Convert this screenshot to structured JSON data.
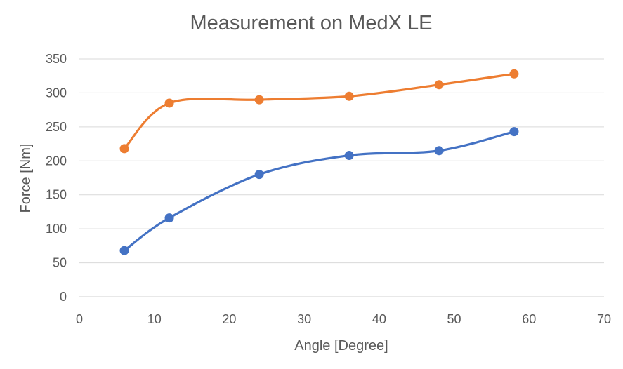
{
  "chart_data": {
    "type": "scatter",
    "title": "Measurement on MedX LE",
    "xlabel": "Angle [Degree]",
    "ylabel": "Force [Nm]",
    "xlim": [
      0,
      70
    ],
    "ylim": [
      0,
      350
    ],
    "xticks": [
      0,
      10,
      20,
      30,
      40,
      50,
      60,
      70
    ],
    "yticks": [
      0,
      50,
      100,
      150,
      200,
      250,
      300,
      350
    ],
    "grid": "horizontal",
    "legend": "none",
    "smooth_lines": true,
    "series": [
      {
        "color": "#4472c4",
        "points": [
          [
            6,
            68
          ],
          [
            12,
            116
          ],
          [
            24,
            180
          ],
          [
            36,
            208
          ],
          [
            48,
            215
          ],
          [
            58,
            243
          ]
        ]
      },
      {
        "color": "#ed7d31",
        "points": [
          [
            6,
            218
          ],
          [
            12,
            285
          ],
          [
            24,
            290
          ],
          [
            36,
            295
          ],
          [
            48,
            312
          ],
          [
            58,
            328
          ]
        ]
      }
    ]
  }
}
